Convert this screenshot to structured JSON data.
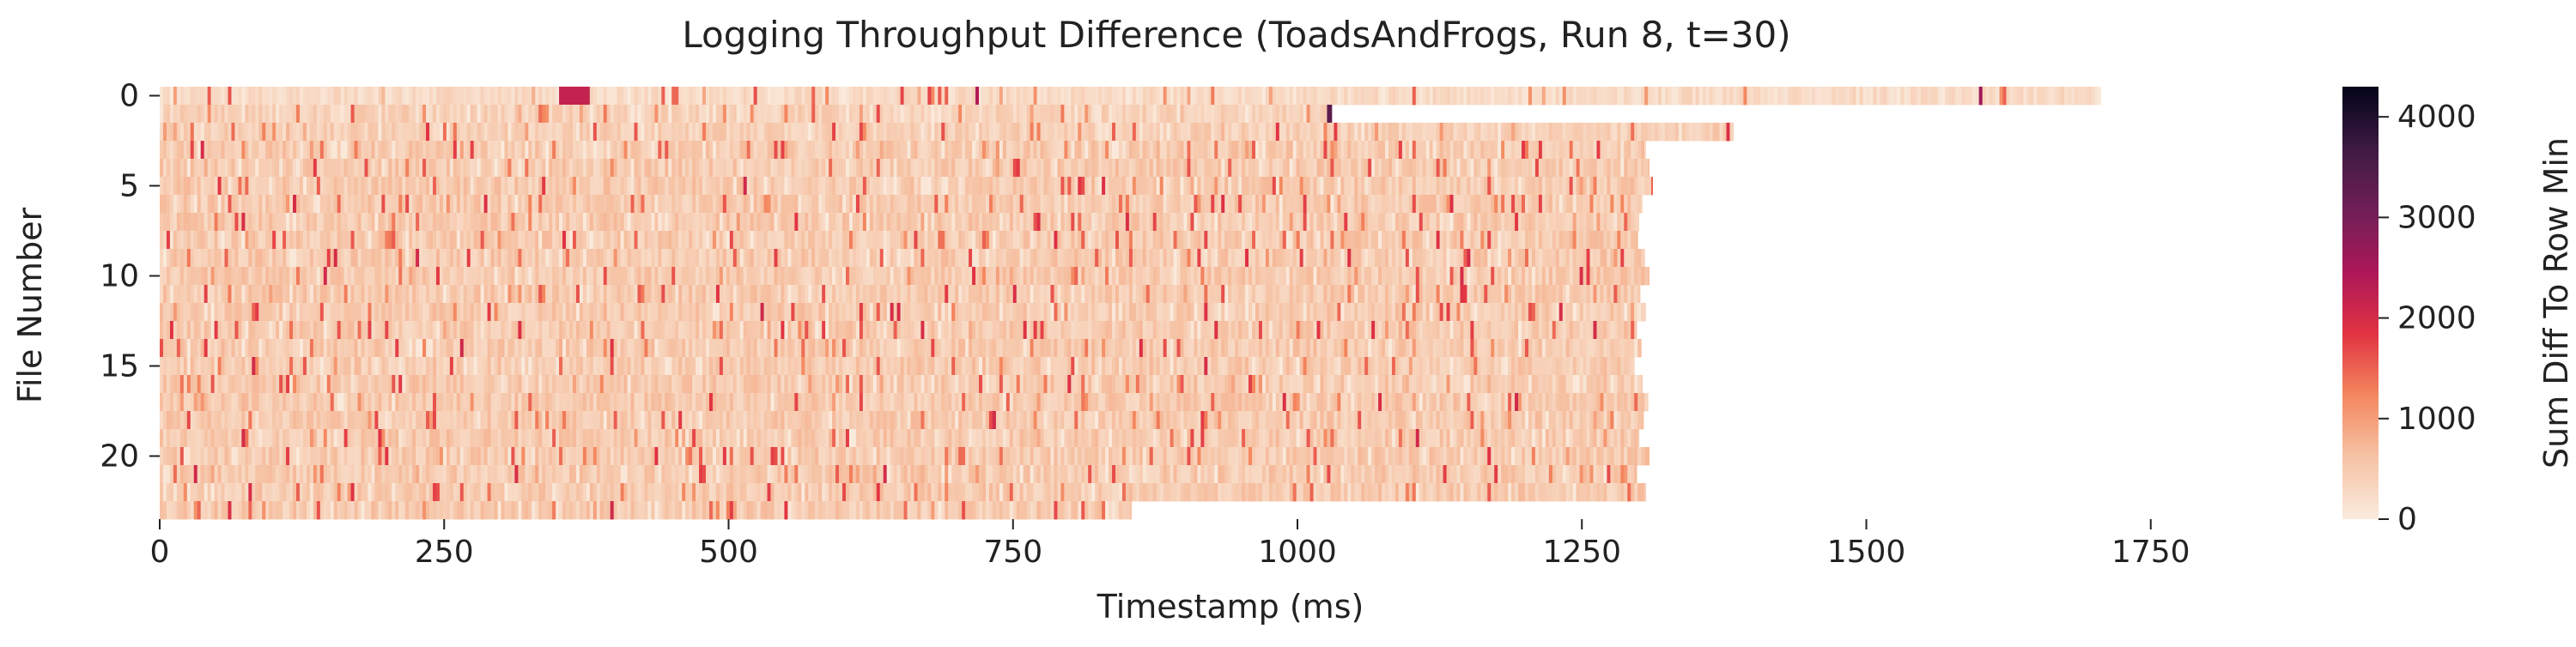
{
  "chart_data": {
    "type": "heatmap",
    "title": "Logging Throughput Difference (ToadsAndFrogs, Run 8, t=30)",
    "xlabel": "Timestamp (ms)",
    "ylabel": "File Number",
    "colorbar_label": "Sum Diff To Row Min",
    "x_ticks": [
      0,
      250,
      500,
      750,
      1000,
      1250,
      1500,
      1750
    ],
    "x_tick_labels": [
      "0",
      "250",
      "500",
      "750",
      "1000",
      "1250",
      "1500",
      "1750"
    ],
    "xlim": [
      0,
      1920
    ],
    "y_ticks": [
      0,
      5,
      10,
      15,
      20
    ],
    "y_tick_labels": [
      "0",
      "5",
      "10",
      "15",
      "20"
    ],
    "ylim": [
      0,
      23
    ],
    "color_ticks": [
      0,
      1000,
      2000,
      3000,
      4000
    ],
    "color_tick_labels": [
      "0",
      "1000",
      "2000",
      "3000",
      "4000"
    ],
    "color_range": [
      0,
      4300
    ],
    "colormap": [
      "#faebdd",
      "#f6c3a5",
      "#f4875e",
      "#e13342",
      "#ad1759",
      "#701f57",
      "#3d1a42",
      "#03051a"
    ],
    "grid": false,
    "rows": [
      {
        "file": 0,
        "end": 1706,
        "base": 180,
        "variation": 350,
        "events": [
          [
            352,
            378,
            2200
          ],
          [
            717,
            719,
            2400
          ],
          [
            1599,
            1601,
            2600
          ]
        ]
      },
      {
        "file": 1,
        "end": 1030,
        "base": 300,
        "variation": 450,
        "events": [
          [
            1028,
            1031,
            3300
          ]
        ]
      },
      {
        "file": 2,
        "end": 1383,
        "base": 320,
        "variation": 450,
        "events": []
      },
      {
        "file": 3,
        "end": 1306,
        "base": 380,
        "variation": 500,
        "events": []
      },
      {
        "file": 4,
        "end": 1309,
        "base": 380,
        "variation": 500,
        "events": []
      },
      {
        "file": 5,
        "end": 1312,
        "base": 380,
        "variation": 500,
        "events": []
      },
      {
        "file": 6,
        "end": 1303,
        "base": 380,
        "variation": 500,
        "events": []
      },
      {
        "file": 7,
        "end": 1300,
        "base": 380,
        "variation": 500,
        "events": []
      },
      {
        "file": 8,
        "end": 1299,
        "base": 380,
        "variation": 500,
        "events": []
      },
      {
        "file": 9,
        "end": 1305,
        "base": 380,
        "variation": 500,
        "events": []
      },
      {
        "file": 10,
        "end": 1309,
        "base": 380,
        "variation": 500,
        "events": []
      },
      {
        "file": 11,
        "end": 1301,
        "base": 380,
        "variation": 500,
        "events": []
      },
      {
        "file": 12,
        "end": 1306,
        "base": 380,
        "variation": 500,
        "events": []
      },
      {
        "file": 13,
        "end": 1298,
        "base": 380,
        "variation": 500,
        "events": []
      },
      {
        "file": 14,
        "end": 1302,
        "base": 380,
        "variation": 500,
        "events": []
      },
      {
        "file": 15,
        "end": 1296,
        "base": 380,
        "variation": 500,
        "events": []
      },
      {
        "file": 16,
        "end": 1303,
        "base": 380,
        "variation": 500,
        "events": []
      },
      {
        "file": 17,
        "end": 1308,
        "base": 380,
        "variation": 500,
        "events": []
      },
      {
        "file": 18,
        "end": 1304,
        "base": 380,
        "variation": 500,
        "events": []
      },
      {
        "file": 19,
        "end": 1300,
        "base": 380,
        "variation": 500,
        "events": []
      },
      {
        "file": 20,
        "end": 1309,
        "base": 380,
        "variation": 500,
        "events": []
      },
      {
        "file": 21,
        "end": 1298,
        "base": 380,
        "variation": 500,
        "events": []
      },
      {
        "file": 22,
        "end": 1306,
        "base": 380,
        "variation": 500,
        "events": []
      },
      {
        "file": 23,
        "end": 854,
        "base": 380,
        "variation": 500,
        "events": []
      }
    ]
  }
}
